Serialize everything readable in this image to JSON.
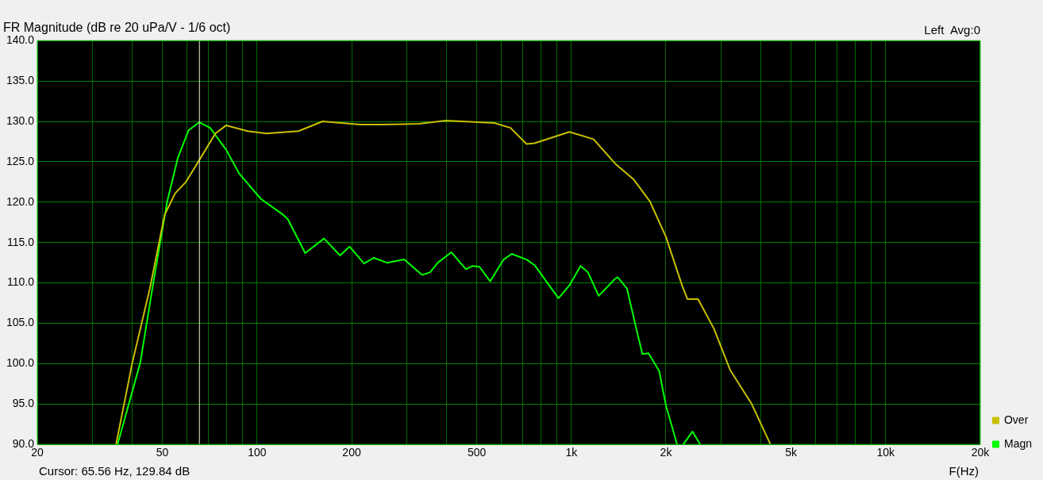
{
  "chart_data": {
    "type": "line",
    "title": "FR Magnitude (dB re 20 uPa/V - 1/6 oct)",
    "xlabel": "F(Hz)",
    "annotations": [
      "Left  Avg:0",
      "Cursor: 65.56 Hz, 129.84 dB"
    ],
    "log": "x",
    "grid": true,
    "legend": "bottom right",
    "marker": "none",
    "line_style": "solid",
    "xlim": [
      20,
      20000
    ],
    "xticks": [
      {
        "value": 20,
        "label": "20"
      },
      {
        "value": 30,
        "label": null
      },
      {
        "value": 40,
        "label": null
      },
      {
        "value": 50,
        "label": "50"
      },
      {
        "value": 60,
        "label": null
      },
      {
        "value": 70,
        "label": null
      },
      {
        "value": 80,
        "label": null
      },
      {
        "value": 90,
        "label": null
      },
      {
        "value": 100,
        "label": "100"
      },
      {
        "value": 200,
        "label": "200"
      },
      {
        "value": 300,
        "label": null
      },
      {
        "value": 400,
        "label": null
      },
      {
        "value": 500,
        "label": "500"
      },
      {
        "value": 600,
        "label": null
      },
      {
        "value": 700,
        "label": null
      },
      {
        "value": 800,
        "label": null
      },
      {
        "value": 900,
        "label": null
      },
      {
        "value": 1000,
        "label": "1k"
      },
      {
        "value": 2000,
        "label": "2k"
      },
      {
        "value": 3000,
        "label": null
      },
      {
        "value": 4000,
        "label": null
      },
      {
        "value": 5000,
        "label": "5k"
      },
      {
        "value": 6000,
        "label": null
      },
      {
        "value": 7000,
        "label": null
      },
      {
        "value": 8000,
        "label": null
      },
      {
        "value": 9000,
        "label": null
      },
      {
        "value": 10000,
        "label": "10k"
      },
      {
        "value": 20000,
        "label": "20k"
      }
    ],
    "ylim": [
      90,
      140
    ],
    "yticks": [
      {
        "value": 90,
        "label": "90.0"
      },
      {
        "value": 95,
        "label": "95.0"
      },
      {
        "value": 100,
        "label": "100.0"
      },
      {
        "value": 105,
        "label": "105.0"
      },
      {
        "value": 110,
        "label": "110.0"
      },
      {
        "value": 115,
        "label": "115.0"
      },
      {
        "value": 120,
        "label": "120.0"
      },
      {
        "value": 125,
        "label": "125.0"
      },
      {
        "value": 130,
        "label": "130.0"
      },
      {
        "value": 135,
        "label": "135.0"
      },
      {
        "value": 140,
        "label": "140.0"
      }
    ],
    "ref_lines": [
      {
        "axis": "x",
        "value": 65.56,
        "color": "#f4f4d8"
      }
    ],
    "series": [
      {
        "name": "Over",
        "color": "#c8c000",
        "x": [
          35.6,
          40.1,
          45.6,
          50.8,
          54.9,
          59.4,
          65.5,
          73.7,
          79.7,
          93.3,
          107,
          135.5,
          161.7,
          213,
          249,
          328,
          399,
          569,
          640,
          720,
          764,
          986,
          1176,
          1377,
          1404,
          1580,
          1778,
          2000,
          2250,
          2340,
          2530,
          2845,
          3202,
          3750,
          4300
        ],
        "values": [
          90,
          100.1,
          109.3,
          118.4,
          121.1,
          122.5,
          125.2,
          128.5,
          129.5,
          128.8,
          128.5,
          128.8,
          130,
          129.6,
          129.6,
          129.7,
          130.1,
          129.8,
          129.2,
          127.2,
          127.3,
          128.7,
          127.8,
          124.8,
          124.5,
          122.8,
          120.1,
          115.7,
          109.7,
          108,
          108,
          104.3,
          99.2,
          95,
          90
        ]
      },
      {
        "name": "Magn",
        "color": "#00ff00",
        "x": [
          36,
          42.5,
          46.9,
          51.8,
          56,
          60.6,
          65.5,
          70.9,
          79.7,
          87.9,
          102.9,
          120.5,
          125.3,
          142.3,
          163.3,
          183.8,
          197,
          219,
          235,
          259,
          294,
          335,
          355,
          376,
          415,
          462,
          485,
          510,
          552,
          609,
          646,
          720,
          764,
          910,
          986,
          1070,
          1130,
          1222,
          1377,
          1404,
          1503,
          1610,
          1683,
          1760,
          1903,
          2000,
          2080,
          2170,
          2220,
          2270,
          2430,
          2570
        ],
        "values": [
          90,
          100.1,
          110.3,
          120.1,
          125.5,
          128.9,
          129.9,
          129.2,
          126.5,
          123.5,
          120.4,
          118.5,
          117.9,
          113.7,
          115.5,
          113.4,
          114.5,
          112.4,
          113.1,
          112.5,
          112.9,
          111,
          111.3,
          112.5,
          113.8,
          111.7,
          112.1,
          112,
          110.2,
          112.9,
          113.6,
          112.9,
          112.2,
          108.1,
          109.7,
          112.1,
          111.3,
          108.4,
          110.5,
          110.7,
          109.3,
          104.3,
          101.2,
          101.3,
          99.1,
          94.8,
          92.5,
          90,
          null,
          90,
          91.6,
          90
        ]
      }
    ]
  }
}
